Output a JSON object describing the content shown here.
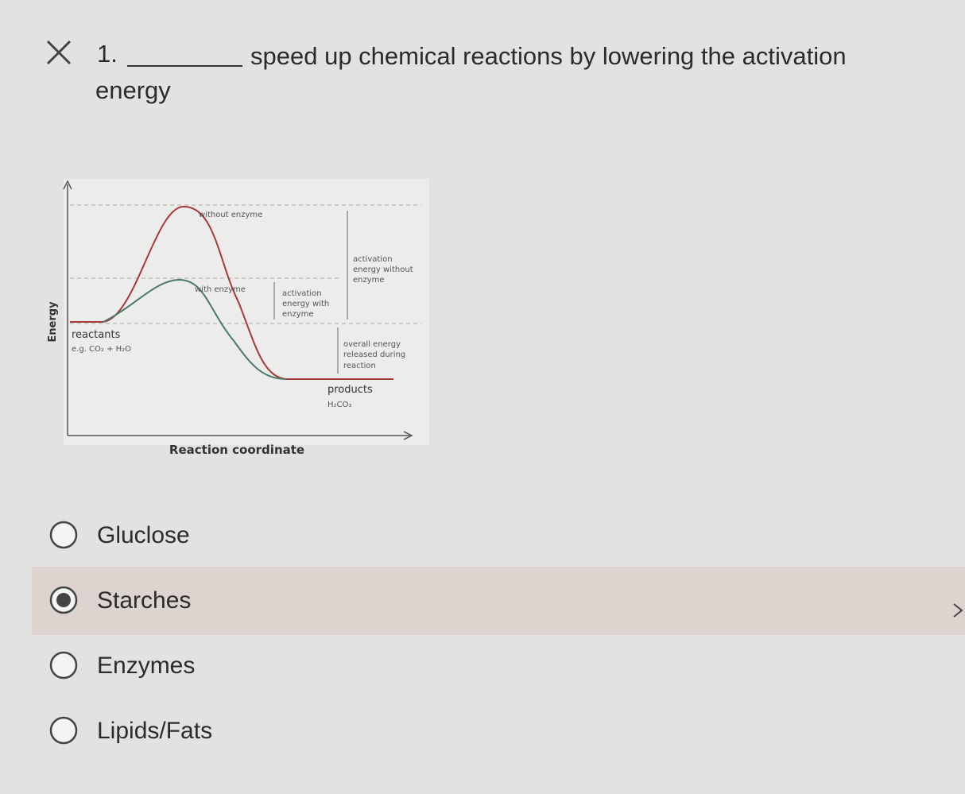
{
  "question": {
    "number": "1.",
    "text_line1": "speed up chemical reactions by lowering the activation",
    "text_line2": "energy"
  },
  "diagram": {
    "y_axis_label": "Energy",
    "x_axis_label": "Reaction coordinate",
    "without_enzyme": "without enzyme",
    "with_enzyme": "with enzyme",
    "activation_with": [
      "activation",
      "energy with",
      "enzyme"
    ],
    "activation_without": [
      "activation",
      "energy without",
      "enzyme"
    ],
    "overall_energy": [
      "overall energy",
      "released during",
      "reaction"
    ],
    "reactants": "reactants",
    "reactants_example": "e.g. CO₂ + H₂O",
    "products": "products",
    "products_example": "H₂CO₃"
  },
  "options": {
    "items": [
      "Gluclose",
      "Starches",
      "Enzymes",
      "Lipids/Fats"
    ],
    "selected": 1
  }
}
